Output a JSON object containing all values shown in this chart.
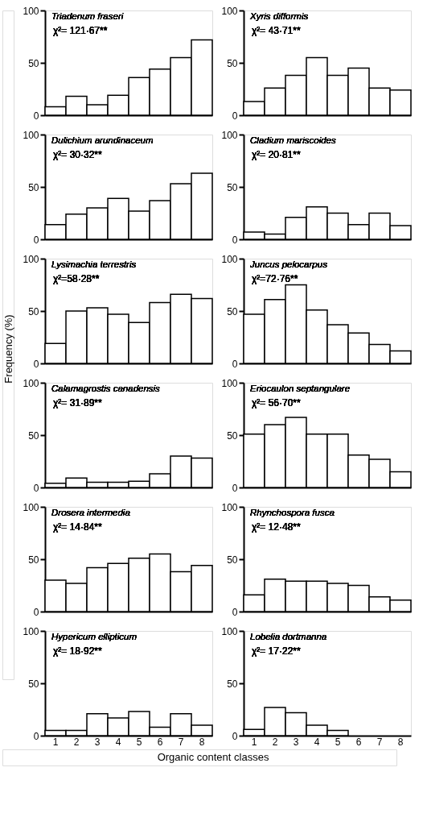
{
  "chart_data": [
    {
      "type": "bar",
      "title": "Triadenum fraseri",
      "annotations": [
        "χ²= 121·67**"
      ],
      "categories": [
        "1",
        "2",
        "3",
        "4",
        "5",
        "6",
        "7",
        "8"
      ],
      "values": [
        8,
        18,
        10,
        19,
        36,
        44,
        55,
        72
      ],
      "color": "#ffffff",
      "ylim": [
        0,
        100
      ],
      "yticks": [
        0,
        50,
        100
      ],
      "tick_labels": "y"
    },
    {
      "type": "bar",
      "title": "Xyris difformis",
      "annotations": [
        "χ²= 43·71**"
      ],
      "categories": [
        "1",
        "2",
        "3",
        "4",
        "5",
        "6",
        "7",
        "8"
      ],
      "values": [
        13,
        26,
        38,
        55,
        38,
        45,
        26,
        24
      ],
      "color": "#ffffff",
      "ylim": [
        0,
        100
      ],
      "yticks": [
        0,
        50,
        100
      ],
      "tick_labels": "y"
    },
    {
      "type": "bar",
      "title": "Dulichium arundinaceum",
      "annotations": [
        "χ²= 30·32**"
      ],
      "categories": [
        "1",
        "2",
        "3",
        "4",
        "5",
        "6",
        "7",
        "8"
      ],
      "values": [
        14,
        24,
        30,
        39,
        27,
        37,
        53,
        63
      ],
      "color": "#ffffff",
      "ylim": [
        0,
        100
      ],
      "yticks": [
        0,
        50,
        100
      ],
      "tick_labels": "y"
    },
    {
      "type": "bar",
      "title": "Cladium mariscoides",
      "annotations": [
        "χ²= 20·81**"
      ],
      "categories": [
        "1",
        "2",
        "3",
        "4",
        "5",
        "6",
        "7",
        "8"
      ],
      "values": [
        7,
        5,
        21,
        31,
        25,
        14,
        25,
        13
      ],
      "color": "#ffffff",
      "ylim": [
        0,
        100
      ],
      "yticks": [
        0,
        50,
        100
      ],
      "tick_labels": "y"
    },
    {
      "type": "bar",
      "title": "Lysimachia terrestris",
      "annotations": [
        "χ²=58·28**"
      ],
      "ylabel": "Frequency (%)",
      "categories": [
        "1",
        "2",
        "3",
        "4",
        "5",
        "6",
        "7",
        "8"
      ],
      "values": [
        19,
        50,
        53,
        47,
        39,
        58,
        66,
        62
      ],
      "color": "#ffffff",
      "ylim": [
        0,
        100
      ],
      "yticks": [
        0,
        50,
        100
      ],
      "tick_labels": "y"
    },
    {
      "type": "bar",
      "title": "Juncus pelocarpus",
      "annotations": [
        "χ²=72·76**"
      ],
      "categories": [
        "1",
        "2",
        "3",
        "4",
        "5",
        "6",
        "7",
        "8"
      ],
      "values": [
        47,
        61,
        75,
        51,
        37,
        29,
        18,
        12
      ],
      "color": "#ffffff",
      "ylim": [
        0,
        100
      ],
      "yticks": [
        0,
        50,
        100
      ],
      "tick_labels": "y"
    },
    {
      "type": "bar",
      "title": "Calamagrostis canadensis",
      "annotations": [
        "χ²= 31·89**"
      ],
      "categories": [
        "1",
        "2",
        "3",
        "4",
        "5",
        "6",
        "7",
        "8"
      ],
      "values": [
        4,
        9,
        5,
        5,
        6,
        13,
        30,
        28
      ],
      "color": "#ffffff",
      "ylim": [
        0,
        100
      ],
      "yticks": [
        0,
        50,
        100
      ],
      "tick_labels": "y"
    },
    {
      "type": "bar",
      "title": "Eriocaulon septangulare",
      "annotations": [
        "χ²= 56·70**"
      ],
      "categories": [
        "1",
        "2",
        "3",
        "4",
        "5",
        "6",
        "7",
        "8"
      ],
      "values": [
        51,
        60,
        67,
        51,
        51,
        31,
        27,
        15
      ],
      "color": "#ffffff",
      "ylim": [
        0,
        100
      ],
      "yticks": [
        0,
        50,
        100
      ],
      "tick_labels": "y"
    },
    {
      "type": "bar",
      "title": "Drosera intermedia",
      "annotations": [
        "χ²= 14·84**"
      ],
      "categories": [
        "1",
        "2",
        "3",
        "4",
        "5",
        "6",
        "7",
        "8"
      ],
      "values": [
        30,
        27,
        42,
        46,
        51,
        55,
        38,
        44
      ],
      "color": "#ffffff",
      "ylim": [
        0,
        100
      ],
      "yticks": [
        0,
        50,
        100
      ],
      "tick_labels": "y"
    },
    {
      "type": "bar",
      "title": "Rhynchospora fusca",
      "annotations": [
        "χ²= 12·48**"
      ],
      "categories": [
        "1",
        "2",
        "3",
        "4",
        "5",
        "6",
        "7",
        "8"
      ],
      "values": [
        16,
        31,
        29,
        29,
        27,
        25,
        14,
        11
      ],
      "color": "#ffffff",
      "ylim": [
        0,
        100
      ],
      "yticks": [
        0,
        50,
        100
      ],
      "tick_labels": "y"
    },
    {
      "type": "bar",
      "title": "Hypericum ellipticum",
      "annotations": [
        "χ²= 18·92**"
      ],
      "xlabel": "Organic content classes",
      "categories": [
        "1",
        "2",
        "3",
        "4",
        "5",
        "6",
        "7",
        "8"
      ],
      "values": [
        5,
        5,
        21,
        17,
        23,
        8,
        21,
        10
      ],
      "color": "#ffffff",
      "ylim": [
        0,
        100
      ],
      "yticks": [
        0,
        50,
        100
      ]
    },
    {
      "type": "bar",
      "title": "Lobelia dortmanna",
      "annotations": [
        "χ²= 17·22**"
      ],
      "categories": [
        "1",
        "2",
        "3",
        "4",
        "5",
        "6",
        "7",
        "8"
      ],
      "values": [
        6,
        27,
        22,
        10,
        5,
        0,
        0,
        0
      ],
      "color": "#ffffff",
      "ylim": [
        0,
        100
      ],
      "yticks": [
        0,
        50,
        100
      ]
    }
  ]
}
